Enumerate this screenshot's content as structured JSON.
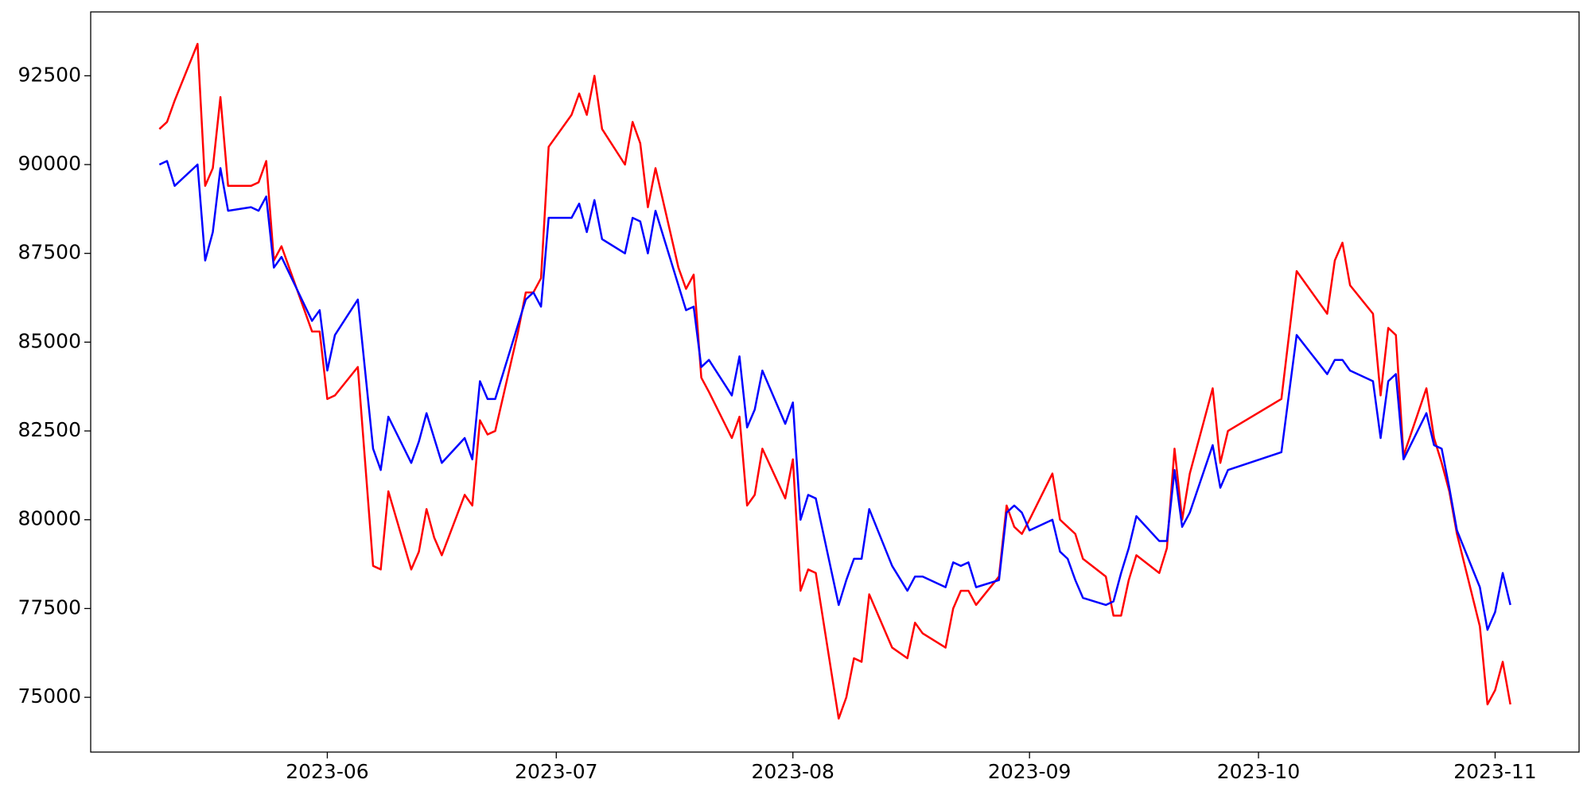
{
  "chart_data": {
    "type": "line",
    "x": [
      "2023-05-10",
      "2023-05-11",
      "2023-05-12",
      "2023-05-15",
      "2023-05-16",
      "2023-05-17",
      "2023-05-18",
      "2023-05-19",
      "2023-05-22",
      "2023-05-23",
      "2023-05-24",
      "2023-05-25",
      "2023-05-26",
      "2023-05-30",
      "2023-05-31",
      "2023-06-01",
      "2023-06-02",
      "2023-06-05",
      "2023-06-07",
      "2023-06-08",
      "2023-06-09",
      "2023-06-12",
      "2023-06-13",
      "2023-06-14",
      "2023-06-15",
      "2023-06-16",
      "2023-06-19",
      "2023-06-20",
      "2023-06-21",
      "2023-06-22",
      "2023-06-23",
      "2023-06-26",
      "2023-06-27",
      "2023-06-28",
      "2023-06-29",
      "2023-06-30",
      "2023-07-03",
      "2023-07-04",
      "2023-07-05",
      "2023-07-06",
      "2023-07-07",
      "2023-07-10",
      "2023-07-11",
      "2023-07-12",
      "2023-07-13",
      "2023-07-14",
      "2023-07-17",
      "2023-07-18",
      "2023-07-19",
      "2023-07-20",
      "2023-07-21",
      "2023-07-24",
      "2023-07-25",
      "2023-07-26",
      "2023-07-27",
      "2023-07-28",
      "2023-07-31",
      "2023-08-01",
      "2023-08-02",
      "2023-08-03",
      "2023-08-04",
      "2023-08-07",
      "2023-08-08",
      "2023-08-09",
      "2023-08-10",
      "2023-08-11",
      "2023-08-14",
      "2023-08-16",
      "2023-08-17",
      "2023-08-18",
      "2023-08-21",
      "2023-08-22",
      "2023-08-23",
      "2023-08-24",
      "2023-08-25",
      "2023-08-28",
      "2023-08-29",
      "2023-08-30",
      "2023-08-31",
      "2023-09-01",
      "2023-09-04",
      "2023-09-05",
      "2023-09-06",
      "2023-09-07",
      "2023-09-08",
      "2023-09-11",
      "2023-09-12",
      "2023-09-13",
      "2023-09-14",
      "2023-09-15",
      "2023-09-18",
      "2023-09-19",
      "2023-09-20",
      "2023-09-21",
      "2023-09-22",
      "2023-09-25",
      "2023-09-26",
      "2023-09-27",
      "2023-10-04",
      "2023-10-06",
      "2023-10-10",
      "2023-10-11",
      "2023-10-12",
      "2023-10-13",
      "2023-10-16",
      "2023-10-17",
      "2023-10-18",
      "2023-10-19",
      "2023-10-20",
      "2023-10-23",
      "2023-10-24",
      "2023-10-25",
      "2023-10-26",
      "2023-10-27",
      "2023-10-30",
      "2023-10-31",
      "2023-11-01",
      "2023-11-02",
      "2023-11-03"
    ],
    "series": [
      {
        "color": "#ff0000",
        "values": [
          91000,
          91200,
          91800,
          93400,
          89400,
          89900,
          91900,
          89400,
          89400,
          89500,
          90100,
          87300,
          87700,
          85300,
          85300,
          83400,
          83500,
          84300,
          78700,
          78600,
          80800,
          78600,
          79100,
          80300,
          79500,
          79000,
          80700,
          80400,
          82800,
          82400,
          82500,
          85300,
          86400,
          86400,
          86800,
          90500,
          91400,
          92000,
          91400,
          92500,
          91000,
          90000,
          91200,
          90600,
          88800,
          89900,
          87100,
          86500,
          86900,
          84000,
          83600,
          82300,
          82900,
          80400,
          80700,
          82000,
          80600,
          81700,
          78000,
          78600,
          78500,
          74400,
          75000,
          76100,
          76000,
          77900,
          76400,
          76100,
          77100,
          76800,
          76400,
          77500,
          78000,
          78000,
          77600,
          78400,
          80400,
          79800,
          79600,
          80000,
          81300,
          80000,
          79800,
          79600,
          78900,
          78400,
          77300,
          77300,
          78300,
          79000,
          78500,
          79200,
          82000,
          80000,
          81300,
          83700,
          81600,
          82500,
          83400,
          87000,
          85800,
          87300,
          87800,
          86600,
          85800,
          83500,
          85400,
          85200,
          81800,
          83700,
          82300,
          81600,
          80800,
          79600,
          77000,
          74800,
          75200,
          76000,
          74800
        ]
      },
      {
        "color": "#0000ff",
        "values": [
          90000,
          90100,
          89400,
          90000,
          87300,
          88100,
          89900,
          88700,
          88800,
          88700,
          89100,
          87100,
          87400,
          85600,
          85900,
          84200,
          85200,
          86200,
          82000,
          81400,
          82900,
          81600,
          82200,
          83000,
          82300,
          81600,
          82300,
          81700,
          83900,
          83400,
          83400,
          85500,
          86200,
          86400,
          86000,
          88500,
          88500,
          88900,
          88100,
          89000,
          87900,
          87500,
          88500,
          88400,
          87500,
          88700,
          86600,
          85900,
          86000,
          84300,
          84500,
          83500,
          84600,
          82600,
          83100,
          84200,
          82700,
          83300,
          80000,
          80700,
          80600,
          77600,
          78300,
          78900,
          78900,
          80300,
          78700,
          78000,
          78400,
          78400,
          78100,
          78800,
          78700,
          78800,
          78100,
          78300,
          80200,
          80400,
          80200,
          79700,
          80000,
          79100,
          78900,
          78300,
          77800,
          77600,
          77700,
          78500,
          79200,
          80100,
          79400,
          79400,
          81400,
          79800,
          80200,
          82100,
          80900,
          81400,
          81900,
          85200,
          84100,
          84500,
          84500,
          84200,
          83900,
          82300,
          83900,
          84100,
          81700,
          83000,
          82100,
          82000,
          80900,
          79700,
          78100,
          76900,
          77400,
          78500,
          77600
        ]
      }
    ],
    "xlim": [
      "2023-05-01",
      "2023-11-12"
    ],
    "xticks": [
      "2023-06",
      "2023-07",
      "2023-08",
      "2023-09",
      "2023-10",
      "2023-11"
    ],
    "ylim": [
      73458,
      94298
    ],
    "yticks": [
      75000,
      77500,
      80000,
      82500,
      85000,
      87500,
      90000,
      92500
    ],
    "grid": false
  }
}
